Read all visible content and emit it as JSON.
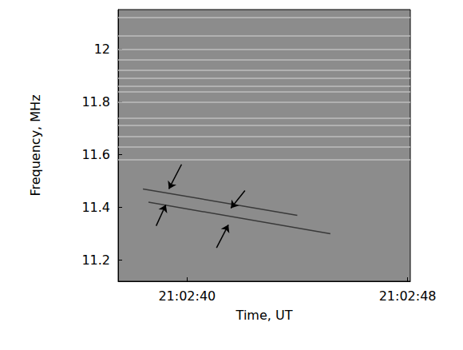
{
  "chart_data": {
    "type": "line",
    "x_label": "Time, UT",
    "y_label": "Frequency, MHz",
    "xlim": [
      37.5,
      48.1
    ],
    "xticks": [
      {
        "value": 40,
        "label": "21:02:40"
      },
      {
        "value": 48,
        "label": "21:02:48"
      }
    ],
    "ylim": [
      11.12,
      12.15
    ],
    "yticks": [
      11.2,
      11.4,
      11.6,
      11.8,
      12.0
    ],
    "grid": false,
    "series": [
      {
        "x": [
          38.4,
          44.0
        ],
        "values": [
          11.47,
          11.37
        ],
        "color": "#2a2a2a"
      },
      {
        "x": [
          38.6,
          45.2
        ],
        "values": [
          11.42,
          11.3
        ],
        "color": "#2a2a2a"
      }
    ],
    "horizontal_lines": {
      "values": [
        12.12,
        12.05,
        12.0,
        11.96,
        11.92,
        11.89,
        11.86,
        11.84,
        11.8,
        11.74,
        11.71,
        11.67,
        11.63,
        11.58
      ],
      "color": "#c4c4c4"
    },
    "arrows": [
      {
        "x": [
          39.8,
          39.34
        ],
        "y": [
          11.563,
          11.47
        ]
      },
      {
        "x": [
          38.88,
          39.23
        ],
        "y": [
          11.33,
          11.41
        ]
      },
      {
        "x": [
          42.1,
          41.59
        ],
        "y": [
          11.464,
          11.397
        ]
      },
      {
        "x": [
          41.07,
          41.5
        ],
        "y": [
          11.247,
          11.334
        ]
      }
    ]
  }
}
